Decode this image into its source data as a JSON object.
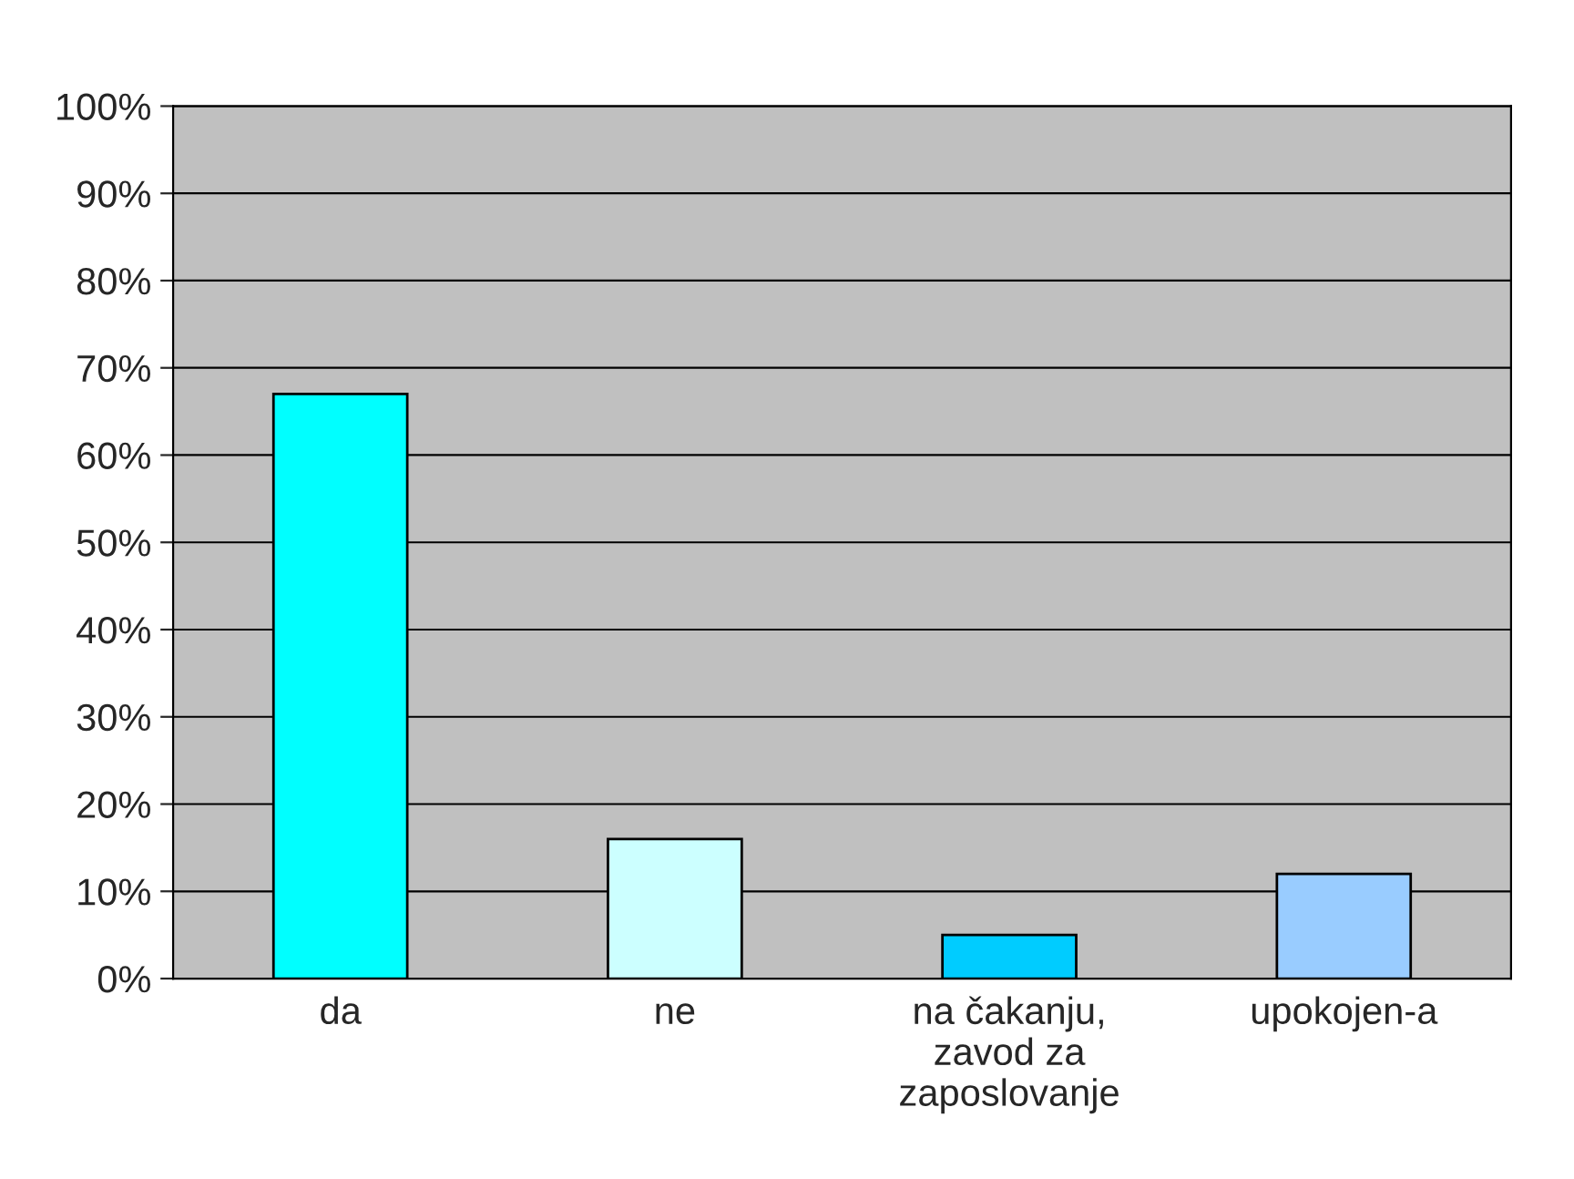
{
  "chart_data": {
    "type": "bar",
    "categories": [
      "da",
      "ne",
      "na čakanju,\nzavod za\nzaposlovanje",
      "upokojen-a"
    ],
    "values": [
      67,
      16,
      5,
      12
    ],
    "colors": [
      "#00ffff",
      "#ccffff",
      "#00ccff",
      "#99ccff"
    ],
    "ylim": [
      0,
      100
    ],
    "yticks": [
      {
        "value": 0,
        "label": "0%"
      },
      {
        "value": 10,
        "label": "10%"
      },
      {
        "value": 20,
        "label": "20%"
      },
      {
        "value": 30,
        "label": "30%"
      },
      {
        "value": 40,
        "label": "40%"
      },
      {
        "value": 50,
        "label": "50%"
      },
      {
        "value": 60,
        "label": "60%"
      },
      {
        "value": 70,
        "label": "70%"
      },
      {
        "value": 80,
        "label": "80%"
      },
      {
        "value": 90,
        "label": "90%"
      },
      {
        "value": 100,
        "label": "100%"
      }
    ],
    "grid": "y"
  }
}
